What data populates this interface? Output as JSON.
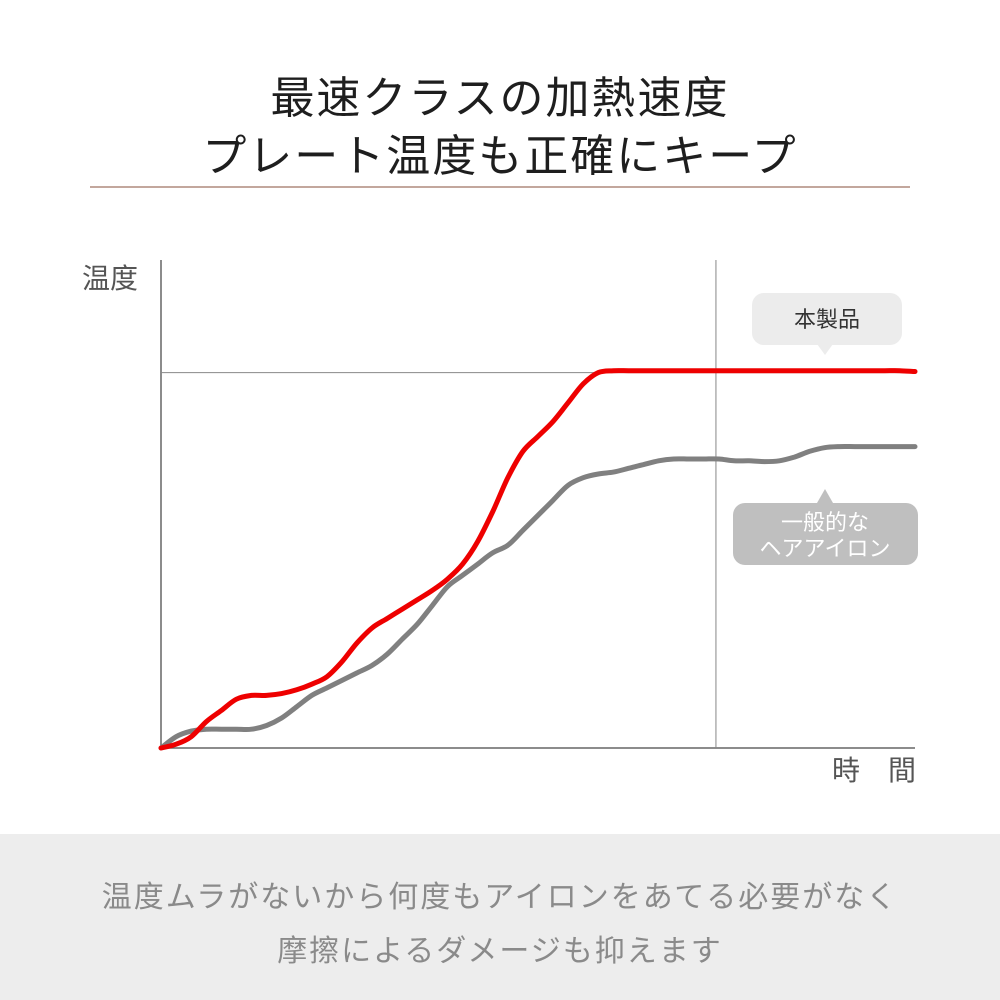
{
  "header": {
    "title_line1": "最速クラスの加熱速度",
    "title_line2": "プレート温度も正確にキープ"
  },
  "chart_data": {
    "type": "line",
    "ylabel": "温度",
    "xlabel": "時　間",
    "x": [
      0,
      2,
      4,
      6,
      8,
      10,
      12,
      14,
      16,
      18,
      20,
      22,
      24,
      26,
      28,
      30,
      32,
      34,
      36,
      38,
      40,
      42,
      44,
      46,
      48,
      50,
      52,
      54,
      56,
      58,
      60,
      62,
      64,
      66,
      68,
      70,
      72,
      74,
      76,
      78,
      80,
      82,
      84,
      86,
      88,
      90,
      92,
      94,
      96,
      98,
      100
    ],
    "series": [
      {
        "name": "本製品",
        "color": "#ee0000",
        "values": [
          0,
          1,
          3,
          7,
          10,
          13,
          14,
          14,
          14.5,
          15.5,
          17,
          19,
          23,
          28,
          32,
          34.5,
          37,
          39.5,
          42,
          45,
          49,
          55,
          63,
          72,
          79,
          83,
          87,
          92,
          97,
          100,
          100.5,
          100.5,
          100.5,
          100.5,
          100.5,
          100.5,
          100.5,
          100.5,
          100.5,
          100.5,
          100.5,
          100.5,
          100.5,
          100.5,
          100.5,
          100.5,
          100.5,
          100.5,
          100.5,
          100.5,
          100.3
        ]
      },
      {
        "name": "一般的な\nヘアアイロン",
        "color": "#808080",
        "values": [
          0,
          3,
          4.5,
          5,
          5,
          5,
          5,
          6,
          8,
          11,
          14,
          16,
          18,
          20,
          22,
          25,
          29,
          33,
          38,
          43,
          46,
          49,
          52,
          54,
          58,
          62,
          66,
          70,
          72,
          73,
          73.5,
          74.5,
          75.5,
          76.5,
          77,
          77,
          77,
          77,
          76.5,
          76.5,
          76.3,
          76.5,
          77.5,
          79,
          80,
          80.3,
          80.3,
          80.3,
          80.3,
          80.3,
          80.3
        ]
      }
    ],
    "xlim": [
      0,
      100
    ],
    "ylim": [
      0,
      130
    ],
    "reference_x": 73.6,
    "reference_y": 100,
    "grid": false,
    "legend": "callouts"
  },
  "labels": {
    "product": "本製品",
    "generic_line1": "一般的な",
    "generic_line2": "ヘアアイロン"
  },
  "colors": {
    "accent_red": "#ee0000",
    "gray_line": "#808080",
    "rule": "#c3a79d",
    "footer_bg": "#ededed"
  },
  "footer": {
    "line1": "温度ムラがないから何度もアイロンをあてる必要がなく",
    "line2": "摩擦によるダメージも抑えます"
  }
}
